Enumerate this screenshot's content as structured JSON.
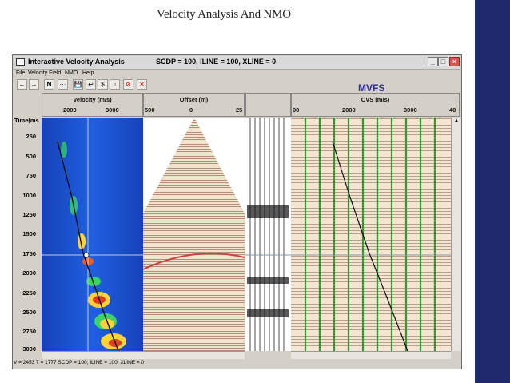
{
  "slide_title": "Velocity Analysis And NMO",
  "window": {
    "title": "Interactive Velocity Analysis",
    "coords": "SCDP = 100,   ILINE = 100,   XLINE = 0",
    "min": "_",
    "max": "□",
    "close": "×"
  },
  "menu": [
    "File",
    "Velocity Field",
    "NMO",
    "Help"
  ],
  "toolbar": [
    "←",
    "→",
    "N",
    "···",
    "💾",
    "↩",
    "$",
    "▫",
    "⊘",
    "✕"
  ],
  "annotation": "MVFS",
  "axis": {
    "header": "Time(ms",
    "ticks": [
      "250",
      "500",
      "750",
      "1000",
      "1250",
      "1500",
      "1750",
      "2000",
      "2250",
      "2500",
      "2750",
      "3000"
    ]
  },
  "panels": {
    "velocity": {
      "label": "Velocity (m/s)",
      "ticks": [
        "2000",
        "3000"
      ]
    },
    "offset": {
      "label": "Offset (m)",
      "ticks": [
        "500",
        "0",
        "25"
      ]
    },
    "cvs": {
      "label": "CVS (m/s)",
      "ticks": [
        "00",
        "2000",
        "3000",
        "40"
      ]
    }
  },
  "status": "V = 2453    T = 1777      SCDP = 100,   ILINE = 100,   XLINE = 0",
  "colors": {
    "brand_bar": "#1f2a6b",
    "semblance_bg": "#1a4fd0",
    "nmo_curve": "#d04040",
    "cvs_lines": "#2e9a2e"
  }
}
